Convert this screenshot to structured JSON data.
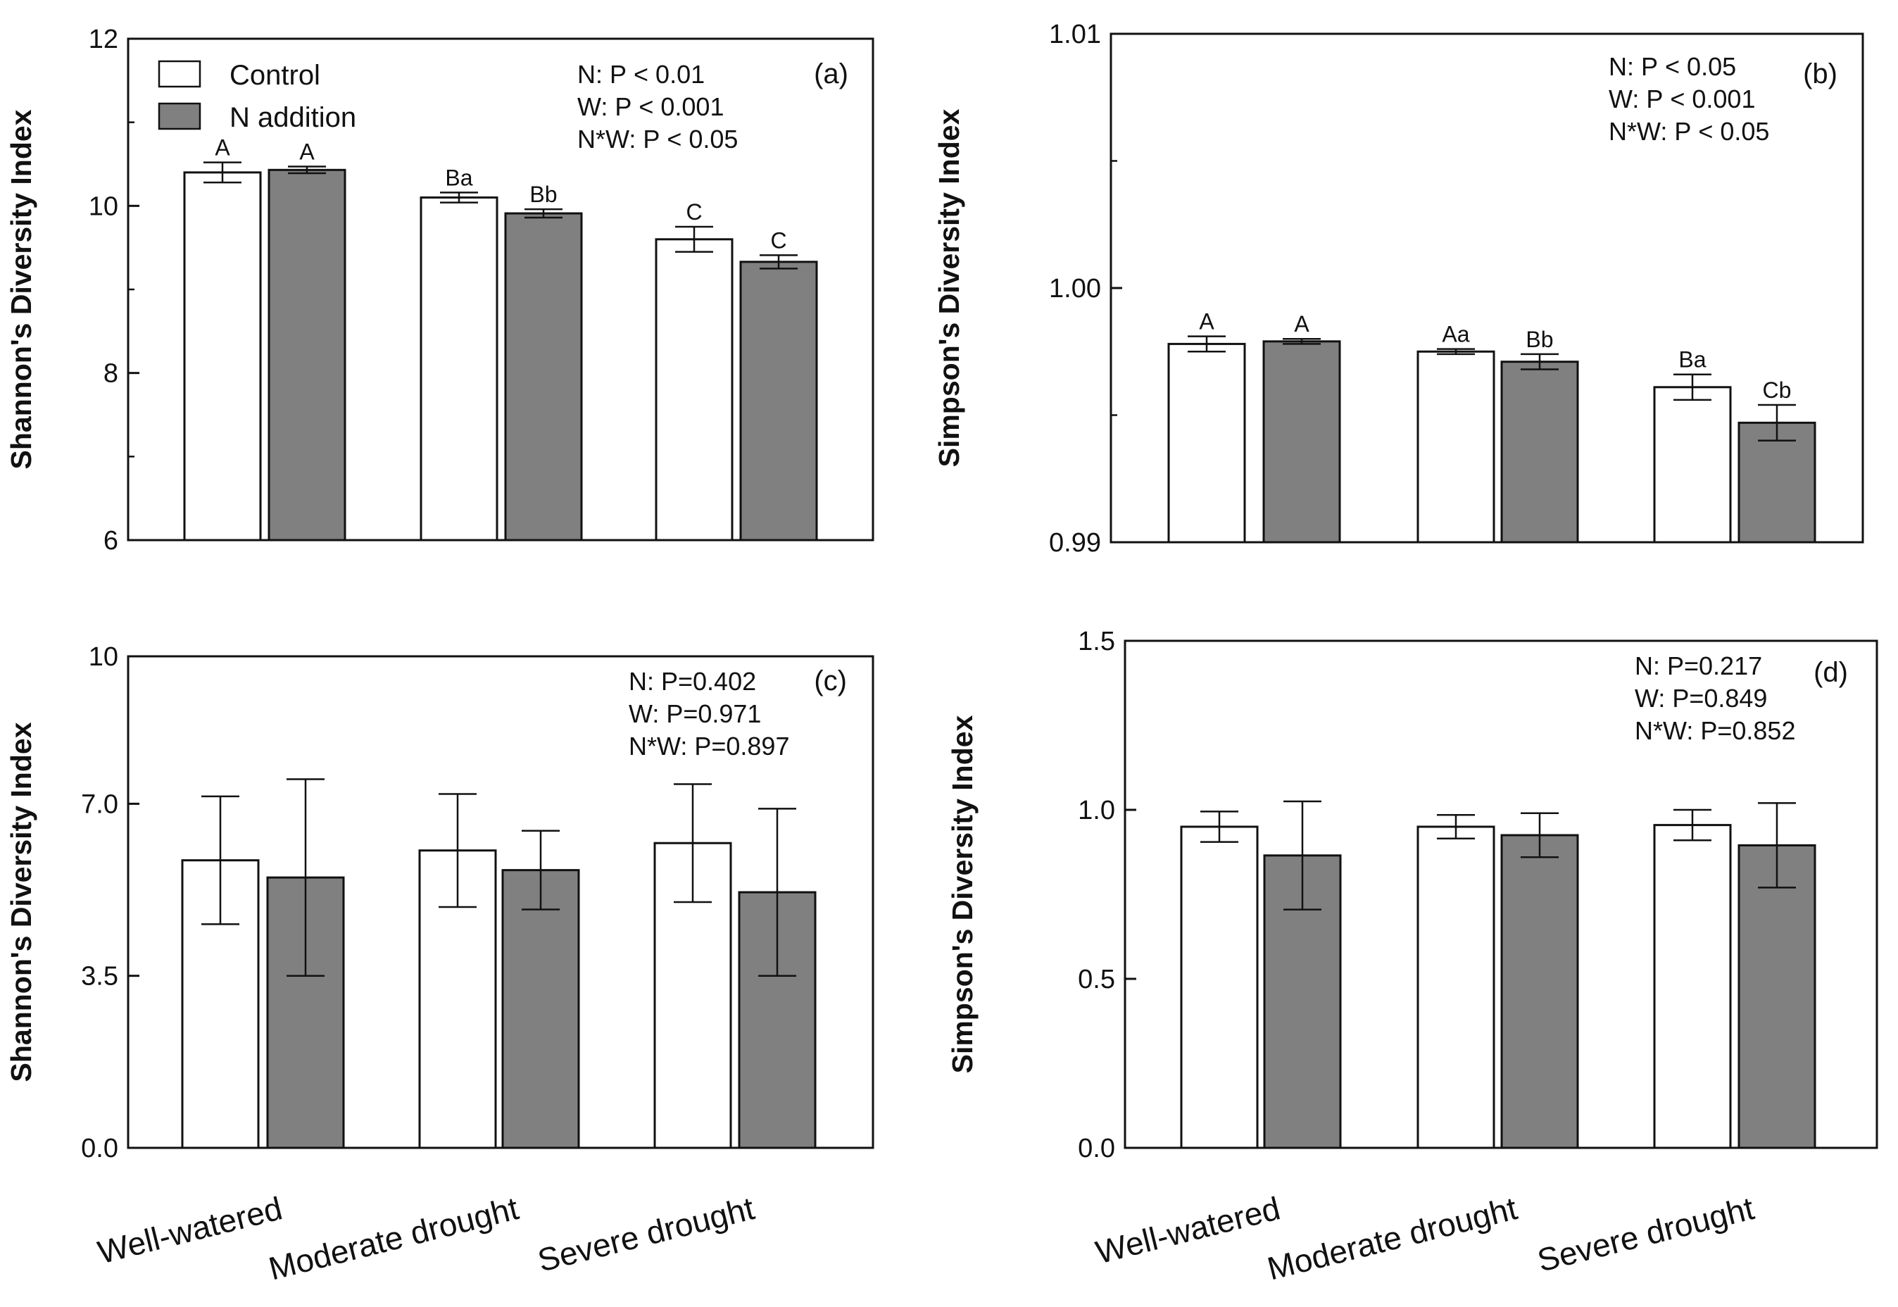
{
  "chart_data": [
    {
      "type": "bar",
      "panel_label": "(a)",
      "ylabel": "Shannon's Diversity Index",
      "ylim": [
        6,
        12
      ],
      "yticks": [
        6,
        8,
        10,
        12
      ],
      "tick_labels": [
        "6",
        "8",
        "10",
        "12"
      ],
      "minor_ticks": [
        7,
        9,
        11
      ],
      "categories": [
        "Well-watered",
        "Moderate drought",
        "Severe drought"
      ],
      "show_category_labels": false,
      "legend": {
        "placement": "top-left",
        "entries": [
          "Control",
          "N addition"
        ]
      },
      "stats": [
        "N: P < 0.01",
        "W: P < 0.001",
        "N*W:  P < 0.05"
      ],
      "series": [
        {
          "name": "Control",
          "values": [
            10.4,
            10.1,
            9.6
          ],
          "errors": [
            0.12,
            0.06,
            0.15
          ],
          "letters": [
            "A",
            "Ba",
            "C"
          ]
        },
        {
          "name": "N addition",
          "values": [
            10.43,
            9.91,
            9.33
          ],
          "errors": [
            0.04,
            0.05,
            0.08
          ],
          "letters": [
            "A",
            "Bb",
            "C"
          ]
        }
      ]
    },
    {
      "type": "bar",
      "panel_label": "(b)",
      "ylabel": "Simpson's Diversity Index",
      "ylim": [
        0.99,
        1.01
      ],
      "yticks": [
        0.99,
        1.0,
        1.01
      ],
      "tick_labels": [
        "0.99",
        "1.00",
        "1.01"
      ],
      "minor_ticks": [
        0.995,
        1.005
      ],
      "categories": [
        "Well-watered",
        "Moderate drought",
        "Severe drought"
      ],
      "show_category_labels": false,
      "stats": [
        "N: P < 0.05",
        "W:  P < 0.001",
        "N*W:  P < 0.05"
      ],
      "series": [
        {
          "name": "Control",
          "values": [
            0.9978,
            0.9975,
            0.9961
          ],
          "errors": [
            0.0003,
            0.0001,
            0.0005
          ],
          "letters": [
            "A",
            "Aa",
            "Ba"
          ]
        },
        {
          "name": "N addition",
          "values": [
            0.9979,
            0.9971,
            0.9947
          ],
          "errors": [
            0.0001,
            0.0003,
            0.0007
          ],
          "letters": [
            "A",
            "Bb",
            "Cb"
          ]
        }
      ]
    },
    {
      "type": "bar",
      "panel_label": "(c)",
      "ylabel": "Shannon's Diversity Index",
      "ylim": [
        0,
        10
      ],
      "yticks": [
        0,
        3.5,
        7,
        10
      ],
      "tick_labels": [
        "0.0",
        "3.5",
        "7.0",
        "10"
      ],
      "minor_ticks": [],
      "categories": [
        "Well-watered",
        "Moderate drought",
        "Severe drought"
      ],
      "show_category_labels": true,
      "stats": [
        "N: P=0.402",
        "W: P=0.971",
        "N*W:  P=0.897"
      ],
      "series": [
        {
          "name": "Control",
          "values": [
            5.85,
            6.05,
            6.2
          ],
          "errors": [
            1.3,
            1.15,
            1.2
          ],
          "letters": [
            "",
            "",
            ""
          ]
        },
        {
          "name": "N addition",
          "values": [
            5.5,
            5.65,
            5.2
          ],
          "errors": [
            2.0,
            0.8,
            1.7
          ],
          "letters": [
            "",
            "",
            ""
          ]
        }
      ]
    },
    {
      "type": "bar",
      "panel_label": "(d)",
      "ylabel": "Simpson's Diversity Index",
      "ylim": [
        0,
        1.5
      ],
      "yticks": [
        0,
        0.5,
        1.0,
        1.5
      ],
      "tick_labels": [
        "0.0",
        "0.5",
        "1.0",
        "1.5"
      ],
      "minor_ticks": [],
      "categories": [
        "Well-watered",
        "Moderate drought",
        "Severe drought"
      ],
      "show_category_labels": true,
      "stats": [
        "N: P=0.217",
        "W: P=0.849",
        "N*W:  P=0.852"
      ],
      "series": [
        {
          "name": "Control",
          "values": [
            0.95,
            0.95,
            0.955
          ],
          "errors": [
            0.045,
            0.035,
            0.045
          ],
          "letters": [
            "",
            "",
            ""
          ]
        },
        {
          "name": "N addition",
          "values": [
            0.865,
            0.925,
            0.895
          ],
          "errors": [
            0.16,
            0.065,
            0.125
          ],
          "letters": [
            "",
            "",
            ""
          ]
        }
      ]
    }
  ],
  "colors": {
    "control": "#ffffff",
    "n_addition": "#808080",
    "axis": "#111111"
  }
}
